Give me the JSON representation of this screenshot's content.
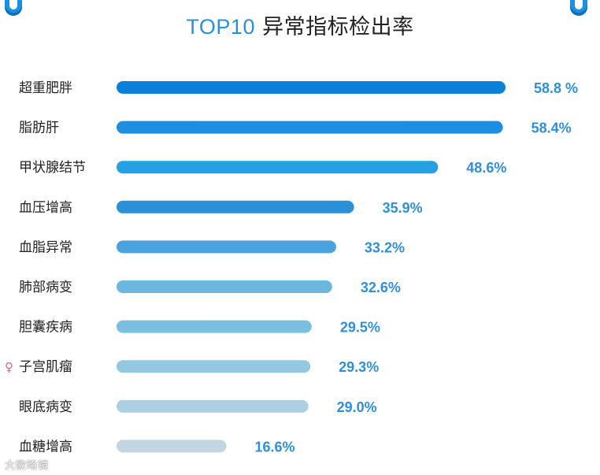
{
  "header": {
    "title_highlight": "TOP10",
    "title_rest": " 异常指标检出率"
  },
  "watermark": "大欧略镜",
  "colors": {
    "accent": "#2d8fd9",
    "bars": [
      "#0a7fdc",
      "#1e8fe0",
      "#25a0e4",
      "#2a90d8",
      "#4aa3df",
      "#6cb7e0",
      "#7bbfe0",
      "#94c8e0",
      "#acd0e2",
      "#c1d6e2"
    ]
  },
  "chart_data": {
    "type": "bar",
    "orientation": "horizontal",
    "categories": [
      "超重肥胖",
      "脂肪肝",
      "甲状腺结节",
      "血压增高",
      "血脂异常",
      "肺部病变",
      "胆囊疾病",
      "子宫肌瘤",
      "眼底病变",
      "血糖增高"
    ],
    "values": [
      58.8,
      58.4,
      48.6,
      35.9,
      33.2,
      32.6,
      29.5,
      29.3,
      29.0,
      16.6
    ],
    "value_labels": [
      "58.8 %",
      "58.4%",
      "48.6%",
      "35.9%",
      "33.2%",
      "32.6%",
      "29.5%",
      "29.3%",
      "29.0%",
      "16.6%"
    ],
    "female_only_icon": "female-icon",
    "female_only_category": "子宫肌瘤",
    "title": "TOP10 异常指标检出率",
    "xlim": [
      0,
      60
    ],
    "grid": false,
    "legend": "none"
  }
}
